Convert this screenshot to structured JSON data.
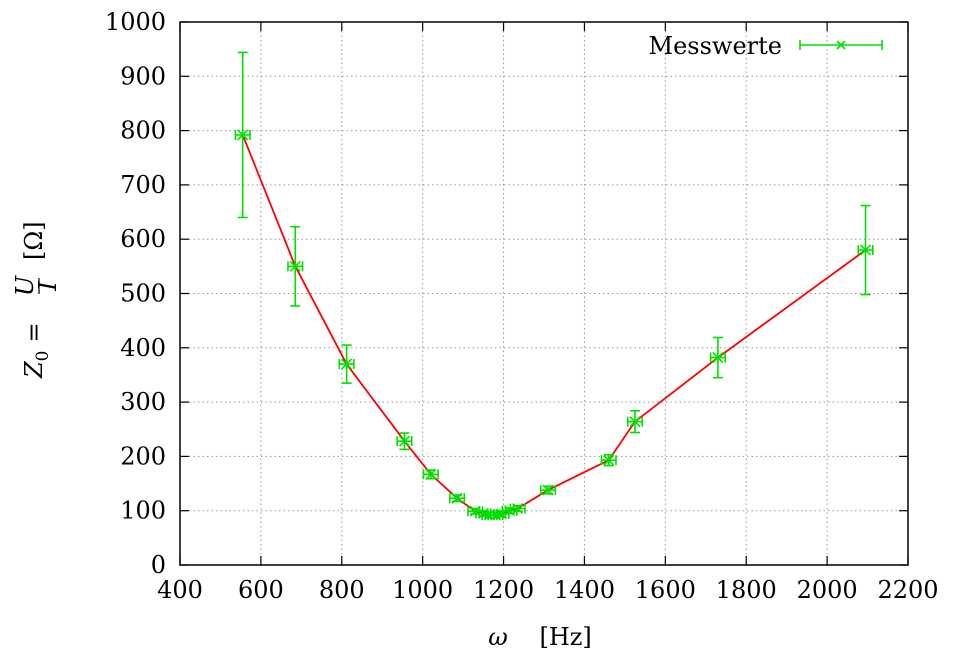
{
  "chart_data": {
    "type": "scatter",
    "title": "",
    "xlabel": {
      "symbol": "ω",
      "unit": "[Hz]"
    },
    "ylabel": {
      "lhs": "Z",
      "sub": "0",
      "eq": "=",
      "num": "U",
      "den": "I",
      "unit": "[Ω]"
    },
    "xlim": [
      400,
      2200
    ],
    "ylim": [
      0,
      1000
    ],
    "xticks": [
      400,
      600,
      800,
      1000,
      1200,
      1400,
      1600,
      1800,
      2000,
      2200
    ],
    "yticks": [
      0,
      100,
      200,
      300,
      400,
      500,
      600,
      700,
      800,
      900,
      1000
    ],
    "xtick_labels": [
      "400",
      "600",
      "800",
      "1000",
      "1200",
      "1400",
      "1600",
      "1800",
      "2000",
      "2200"
    ],
    "ytick_labels": [
      "0",
      "100",
      "200",
      "300",
      "400",
      "500",
      "600",
      "700",
      "800",
      "900",
      "1000"
    ],
    "grid": true,
    "legend": {
      "placement": "top-right",
      "entries": [
        "Messwerte"
      ]
    },
    "series": [
      {
        "name": "Messwerte",
        "color": "#00e000",
        "line_color": "#ff0000",
        "connected": true,
        "points": [
          {
            "x": 555,
            "y": 792,
            "xerr": 18,
            "yerr_low": 152,
            "yerr_high": 152
          },
          {
            "x": 685,
            "y": 550,
            "xerr": 18,
            "yerr_low": 73,
            "yerr_high": 73
          },
          {
            "x": 812,
            "y": 370,
            "xerr": 18,
            "yerr_low": 35,
            "yerr_high": 35
          },
          {
            "x": 955,
            "y": 228,
            "xerr": 18,
            "yerr_low": 15,
            "yerr_high": 15
          },
          {
            "x": 1020,
            "y": 167,
            "xerr": 18,
            "yerr_low": 8,
            "yerr_high": 8
          },
          {
            "x": 1085,
            "y": 123,
            "xerr": 18,
            "yerr_low": 6,
            "yerr_high": 6
          },
          {
            "x": 1130,
            "y": 99,
            "xerr": 18,
            "yerr_low": 5,
            "yerr_high": 5
          },
          {
            "x": 1150,
            "y": 95,
            "xerr": 18,
            "yerr_low": 5,
            "yerr_high": 5
          },
          {
            "x": 1165,
            "y": 92,
            "xerr": 18,
            "yerr_low": 5,
            "yerr_high": 5
          },
          {
            "x": 1180,
            "y": 92,
            "xerr": 18,
            "yerr_low": 5,
            "yerr_high": 5
          },
          {
            "x": 1195,
            "y": 94,
            "xerr": 18,
            "yerr_low": 5,
            "yerr_high": 5
          },
          {
            "x": 1215,
            "y": 100,
            "xerr": 18,
            "yerr_low": 5,
            "yerr_high": 5
          },
          {
            "x": 1235,
            "y": 104,
            "xerr": 18,
            "yerr_low": 5,
            "yerr_high": 5
          },
          {
            "x": 1310,
            "y": 138,
            "xerr": 18,
            "yerr_low": 7,
            "yerr_high": 7
          },
          {
            "x": 1460,
            "y": 193,
            "xerr": 18,
            "yerr_low": 10,
            "yerr_high": 10
          },
          {
            "x": 1525,
            "y": 264,
            "xerr": 18,
            "yerr_low": 20,
            "yerr_high": 20
          },
          {
            "x": 1730,
            "y": 382,
            "xerr": 18,
            "yerr_low": 37,
            "yerr_high": 37
          },
          {
            "x": 2095,
            "y": 580,
            "xerr": 18,
            "yerr_low": 82,
            "yerr_high": 82
          }
        ]
      }
    ]
  }
}
